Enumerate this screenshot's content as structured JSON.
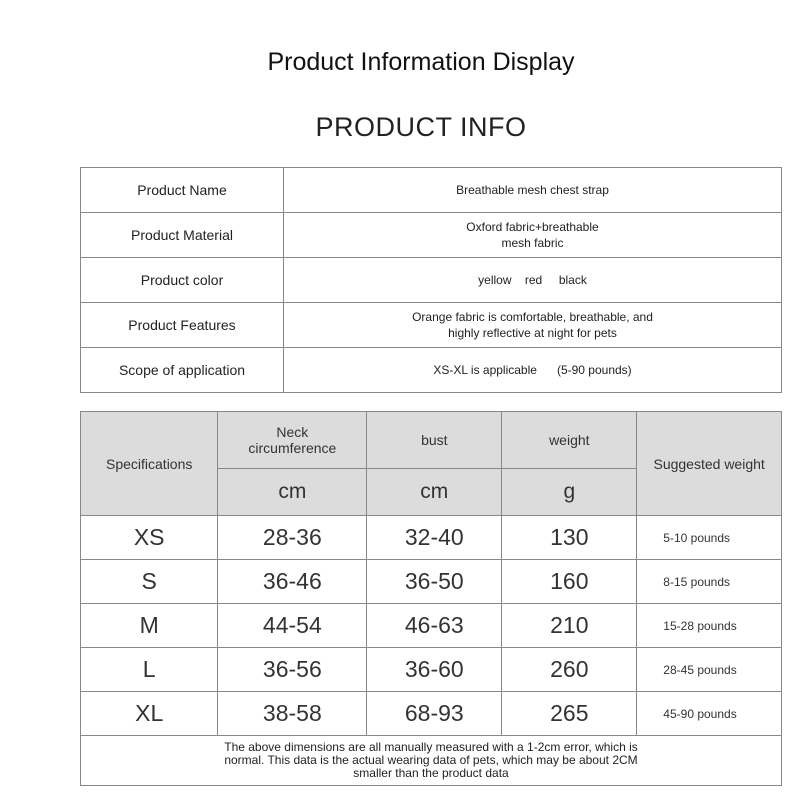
{
  "title": "Product Information Display",
  "subtitle": "PRODUCT INFO",
  "info": [
    {
      "label": "Product Name",
      "value": "Breathable mesh chest strap"
    },
    {
      "label": "Product Material",
      "value": "Oxford fabric+breathable mesh fabric"
    },
    {
      "label": "Product color",
      "value": "yellow    red     black"
    },
    {
      "label": "Product Features",
      "value": "Orange fabric is comfortable, breathable, and highly reflective at night for pets"
    },
    {
      "label": "Scope of application",
      "value": "XS-XL is applicable      (5-90 pounds)"
    }
  ],
  "spec": {
    "headers": {
      "size": "Specifications",
      "neck": "Neck circumference",
      "bust": "bust",
      "weight": "weight",
      "suggested": "Suggested weight"
    },
    "units": {
      "neck": "cm",
      "bust": "cm",
      "weight": "g"
    },
    "rows": [
      {
        "size": "XS",
        "neck": "28-36",
        "bust": "32-40",
        "weight": "130",
        "suggested": "5-10 pounds"
      },
      {
        "size": "S",
        "neck": "36-46",
        "bust": "36-50",
        "weight": "160",
        "suggested": "8-15 pounds"
      },
      {
        "size": "M",
        "neck": "44-54",
        "bust": "46-63",
        "weight": "210",
        "suggested": "15-28 pounds"
      },
      {
        "size": "L",
        "neck": "36-56",
        "bust": "36-60",
        "weight": "260",
        "suggested": "28-45 pounds"
      },
      {
        "size": "XL",
        "neck": "38-58",
        "bust": "68-93",
        "weight": "265",
        "suggested": "45-90 pounds"
      }
    ],
    "note": "The above dimensions are all manually measured with a 1-2cm error, which is normal. This data is the actual wearing data of pets, which may be about 2CM smaller than the product data"
  }
}
